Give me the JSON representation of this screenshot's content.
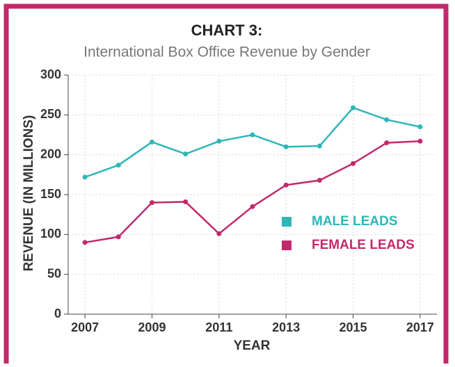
{
  "chart_data": {
    "type": "line",
    "title": "CHART 3:",
    "subtitle": "International Box Office Revenue by Gender",
    "x_label": "YEAR",
    "y_label": "REVENUE (IN MILLIONS)",
    "x": [
      2007,
      2008,
      2009,
      2010,
      2011,
      2012,
      2013,
      2014,
      2015,
      2016,
      2017
    ],
    "series": [
      {
        "name": "MALE LEADS",
        "color": "#2fb6b8",
        "values": [
          172,
          187,
          216,
          201,
          217,
          225,
          210,
          211,
          259,
          244,
          235
        ]
      },
      {
        "name": "FEMALE LEADS",
        "color": "#c2296c",
        "values": [
          90,
          97,
          140,
          141,
          101,
          135,
          162,
          168,
          189,
          215,
          217
        ]
      }
    ],
    "xlim": [
      2006.5,
      2017.5
    ],
    "xticks": [
      2007,
      2009,
      2011,
      2013,
      2015,
      2017
    ],
    "ylim": [
      0,
      300
    ],
    "yticks": [
      0,
      50,
      100,
      150,
      200,
      250,
      300
    ],
    "grid": true,
    "legend_position": "right"
  }
}
